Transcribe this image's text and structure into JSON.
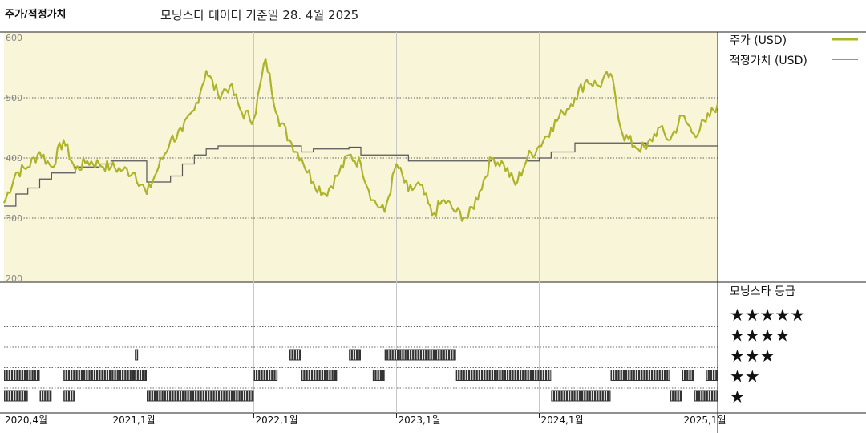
{
  "header": {
    "title": "주가/적정가치",
    "subtitle": "모닝스타 데이터 기준일 28. 4월 2025"
  },
  "legend": {
    "price_label": "주가 (USD)",
    "fair_label": "적정가치 (USD)",
    "rating_title": "모닝스타 등급"
  },
  "colors": {
    "price": "#aeb429",
    "fair": "#555555",
    "plot_bg": "#f8f5d9",
    "bars": "#333333"
  },
  "chart_data": {
    "type": "line",
    "title": "주가/적정가치",
    "y_ticks": [
      "600",
      "500",
      "400",
      "300",
      "200"
    ],
    "ylim": [
      200,
      600
    ],
    "x_range": [
      "2020-04",
      "2025-04"
    ],
    "x_ticks": [
      {
        "label": "2020,4월",
        "date": "2020-04"
      },
      {
        "label": "2021,1월",
        "date": "2021-01"
      },
      {
        "label": "2022,1월",
        "date": "2022-01"
      },
      {
        "label": "2023,1월",
        "date": "2023-01"
      },
      {
        "label": "2024,1월",
        "date": "2024-01"
      },
      {
        "label": "2025,1월",
        "date": "2025-01"
      }
    ],
    "series": [
      {
        "name": "주가 (USD)",
        "points": [
          [
            "2020-04",
            325
          ],
          [
            "2020-05",
            375
          ],
          [
            "2020-06",
            385
          ],
          [
            "2020-07",
            410
          ],
          [
            "2020-08",
            385
          ],
          [
            "2020-09",
            430
          ],
          [
            "2020-10",
            380
          ],
          [
            "2020-11",
            395
          ],
          [
            "2020-12",
            390
          ],
          [
            "2021-01",
            385
          ],
          [
            "2021-02",
            380
          ],
          [
            "2021-03",
            375
          ],
          [
            "2021-04",
            340
          ],
          [
            "2021-05",
            385
          ],
          [
            "2021-06",
            430
          ],
          [
            "2021-07",
            445
          ],
          [
            "2021-08",
            480
          ],
          [
            "2021-09",
            545
          ],
          [
            "2021-10",
            505
          ],
          [
            "2021-11",
            520
          ],
          [
            "2021-12",
            475
          ],
          [
            "2022-01",
            465
          ],
          [
            "2022-02",
            565
          ],
          [
            "2022-03",
            470
          ],
          [
            "2022-04",
            430
          ],
          [
            "2022-05",
            400
          ],
          [
            "2022-06",
            360
          ],
          [
            "2022-07",
            340
          ],
          [
            "2022-08",
            370
          ],
          [
            "2022-09",
            405
          ],
          [
            "2022-10",
            390
          ],
          [
            "2022-11",
            330
          ],
          [
            "2022-12",
            310
          ],
          [
            "2023-01",
            390
          ],
          [
            "2023-02",
            345
          ],
          [
            "2023-03",
            355
          ],
          [
            "2023-04",
            305
          ],
          [
            "2023-05",
            330
          ],
          [
            "2023-06",
            310
          ],
          [
            "2023-07",
            300
          ],
          [
            "2023-08",
            345
          ],
          [
            "2023-09",
            400
          ],
          [
            "2023-10",
            390
          ],
          [
            "2023-11",
            355
          ],
          [
            "2023-12",
            400
          ],
          [
            "2024-01",
            420
          ],
          [
            "2024-02",
            450
          ],
          [
            "2024-03",
            475
          ],
          [
            "2024-04",
            500
          ],
          [
            "2024-05",
            530
          ],
          [
            "2024-06",
            520
          ],
          [
            "2024-07",
            540
          ],
          [
            "2024-08",
            440
          ],
          [
            "2024-09",
            420
          ],
          [
            "2024-10",
            415
          ],
          [
            "2024-11",
            450
          ],
          [
            "2024-12",
            430
          ],
          [
            "2025-01",
            470
          ],
          [
            "2025-02",
            440
          ],
          [
            "2025-03",
            460
          ],
          [
            "2025-04",
            490
          ]
        ]
      },
      {
        "name": "적정가치 (USD)",
        "step_points": [
          [
            "2020-04",
            320
          ],
          [
            "2020-05",
            340
          ],
          [
            "2020-06",
            350
          ],
          [
            "2020-07",
            365
          ],
          [
            "2020-08",
            375
          ],
          [
            "2020-10",
            385
          ],
          [
            "2020-12",
            390
          ],
          [
            "2021-01",
            395
          ],
          [
            "2021-03",
            395
          ],
          [
            "2021-04",
            360
          ],
          [
            "2021-06",
            370
          ],
          [
            "2021-07",
            390
          ],
          [
            "2021-08",
            405
          ],
          [
            "2021-09",
            415
          ],
          [
            "2021-10",
            420
          ],
          [
            "2022-02",
            420
          ],
          [
            "2022-03",
            420
          ],
          [
            "2022-05",
            410
          ],
          [
            "2022-06",
            415
          ],
          [
            "2022-09",
            418
          ],
          [
            "2022-10",
            405
          ],
          [
            "2023-02",
            395
          ],
          [
            "2023-06",
            395
          ],
          [
            "2023-09",
            400
          ],
          [
            "2023-12",
            395
          ],
          [
            "2024-01",
            400
          ],
          [
            "2024-02",
            410
          ],
          [
            "2024-04",
            425
          ],
          [
            "2024-05",
            425
          ],
          [
            "2024-10",
            420
          ],
          [
            "2025-04",
            418
          ]
        ]
      }
    ],
    "rating": {
      "title": "모닝스타 등급",
      "levels": [
        "★★★★★",
        "★★★★",
        "★★★",
        "★★",
        "★"
      ],
      "segments": [
        {
          "stars": 4,
          "from": "2021-03",
          "to": "2021-03"
        },
        {
          "stars": 4,
          "from": "2022-04",
          "to": "2022-05"
        },
        {
          "stars": 4,
          "from": "2022-09",
          "to": "2022-10"
        },
        {
          "stars": 4,
          "from": "2022-12",
          "to": "2023-06"
        },
        {
          "stars": 3,
          "from": "2020-04",
          "to": "2020-07"
        },
        {
          "stars": 3,
          "from": "2020-09",
          "to": "2021-03"
        },
        {
          "stars": 3,
          "from": "2021-03",
          "to": "2021-04"
        },
        {
          "stars": 3,
          "from": "2022-01",
          "to": "2022-03"
        },
        {
          "stars": 3,
          "from": "2022-05",
          "to": "2022-08"
        },
        {
          "stars": 3,
          "from": "2022-11",
          "to": "2022-12"
        },
        {
          "stars": 3,
          "from": "2023-06",
          "to": "2024-02"
        },
        {
          "stars": 3,
          "from": "2024-07",
          "to": "2024-12"
        },
        {
          "stars": 3,
          "from": "2025-01",
          "to": "2025-02"
        },
        {
          "stars": 3,
          "from": "2025-03",
          "to": "2025-04"
        },
        {
          "stars": 2,
          "from": "2020-04",
          "to": "2020-06"
        },
        {
          "stars": 2,
          "from": "2020-07",
          "to": "2020-08"
        },
        {
          "stars": 2,
          "from": "2020-09",
          "to": "2020-10"
        },
        {
          "stars": 2,
          "from": "2021-04",
          "to": "2022-01"
        },
        {
          "stars": 2,
          "from": "2024-02",
          "to": "2024-07"
        },
        {
          "stars": 2,
          "from": "2024-12",
          "to": "2025-01"
        },
        {
          "stars": 2,
          "from": "2025-02",
          "to": "2025-04"
        }
      ]
    }
  }
}
